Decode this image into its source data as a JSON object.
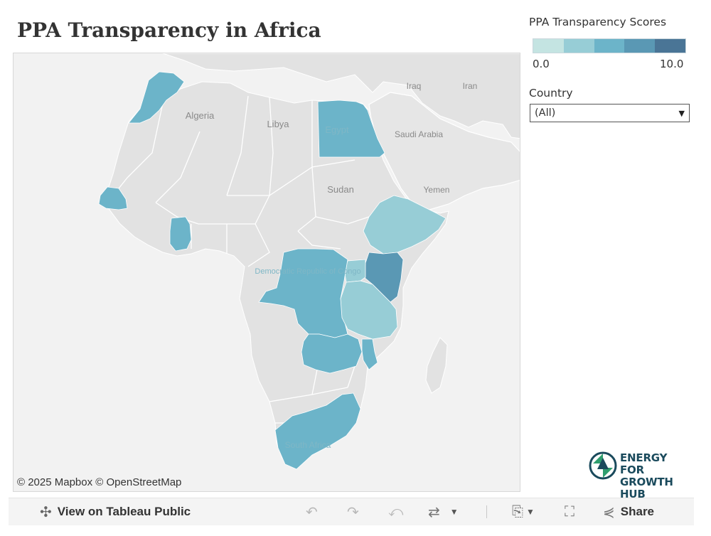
{
  "title": "PPA Transparency in Africa",
  "legend": {
    "title": "PPA Transparency Scores",
    "min_label": "0.0",
    "max_label": "10.0",
    "colors": [
      "#c4e4e2",
      "#97cdd6",
      "#6cb4c9",
      "#5a98b4",
      "#4a7596"
    ]
  },
  "filter": {
    "label": "Country",
    "value": "(All)"
  },
  "map": {
    "land_color": "#e2e2e2",
    "water_color": "#f3f3f3",
    "border_color": "#ffffff",
    "country_labels": [
      "Algeria",
      "Libya",
      "Egypt",
      "Sudan",
      "Iraq",
      "Iran",
      "Saudi Arabia",
      "Yemen",
      "Democratic Republic of Congo",
      "South Africa"
    ],
    "highlighted": [
      {
        "name": "Morocco",
        "color": "#6cb4c9"
      },
      {
        "name": "Egypt",
        "color": "#6cb4c9"
      },
      {
        "name": "Senegal",
        "color": "#6cb4c9"
      },
      {
        "name": "Ghana",
        "color": "#6cb4c9"
      },
      {
        "name": "Ethiopia",
        "color": "#97cdd6"
      },
      {
        "name": "Kenya",
        "color": "#5a98b4"
      },
      {
        "name": "Uganda",
        "color": "#97cdd6"
      },
      {
        "name": "Tanzania",
        "color": "#97cdd6"
      },
      {
        "name": "Democratic Republic of Congo",
        "color": "#6cb4c9"
      },
      {
        "name": "Zambia",
        "color": "#6cb4c9"
      },
      {
        "name": "Malawi",
        "color": "#6cb4c9"
      },
      {
        "name": "South Africa",
        "color": "#6cb4c9"
      }
    ]
  },
  "attribution": "© 2025 Mapbox © OpenStreetMap",
  "logo": {
    "line1": "ENERGY FOR",
    "line2": "GROWTH HUB",
    "icon": "energy-hub-logo"
  },
  "toolbar": {
    "view_label": "View on Tableau Public",
    "share_label": "Share",
    "icons": [
      "tableau-icon",
      "undo-icon",
      "redo-icon",
      "revert-icon",
      "refresh-icon",
      "download-icon",
      "fullscreen-icon",
      "share-icon"
    ]
  }
}
